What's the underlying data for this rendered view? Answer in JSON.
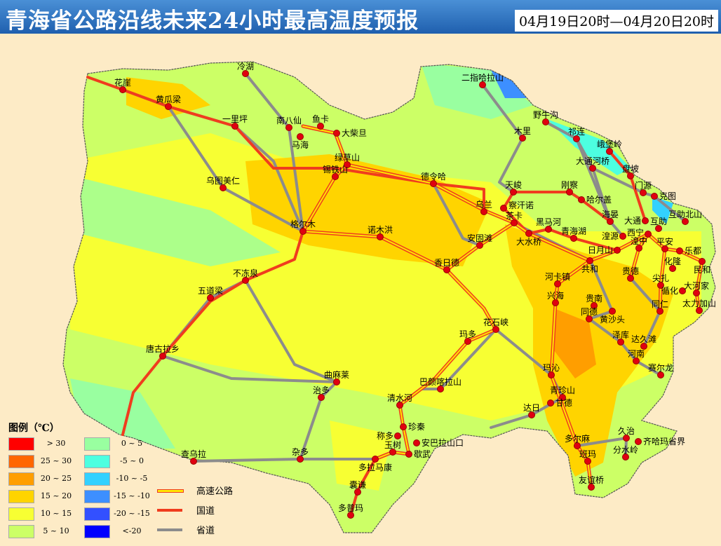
{
  "header": {
    "title": "青海省公路沿线未来24小时最高温度预报",
    "date_range": "04月19日20时—04月20日20时"
  },
  "legend": {
    "title": "图例（℃）",
    "temperature_classes": [
      {
        "label": "> 30",
        "color": "#ff0000"
      },
      {
        "label": "25 ~ 30",
        "color": "#ff6600"
      },
      {
        "label": "20 ~ 25",
        "color": "#ff9e00"
      },
      {
        "label": "15 ~ 20",
        "color": "#ffd400"
      },
      {
        "label": "10 ~ 15",
        "color": "#f7ff33"
      },
      {
        "label": "5 ~ 10",
        "color": "#ccff66"
      },
      {
        "label": "0 ~ 5",
        "color": "#99ffa0"
      },
      {
        "label": "-5 ~ 0",
        "color": "#4dffe0"
      },
      {
        "label": "-10 ~ -5",
        "color": "#33d1ff"
      },
      {
        "label": "-15 ~ -10",
        "color": "#3d8fff"
      },
      {
        "label": "-20 ~ -15",
        "color": "#3350ff"
      },
      {
        "label": "<-20",
        "color": "#0000ff"
      }
    ],
    "road_types": [
      {
        "label": "高速公路",
        "icon": "expressway-line",
        "color": "#ffe600"
      },
      {
        "label": "国道",
        "icon": "national-road-line",
        "color": "#f03c1e"
      },
      {
        "label": "省道",
        "icon": "provincial-road-line",
        "color": "#8c8c8c"
      }
    ]
  },
  "places": [
    "花崖",
    "黄瓜梁",
    "冷湖",
    "一里坪",
    "南八仙",
    "鱼卡",
    "马海",
    "大柴旦",
    "绿草山",
    "锡铁山",
    "乌图美仁",
    "德令哈",
    "格尔木",
    "诺木洪",
    "乌兰",
    "察汗诺",
    "茶卡",
    "天峻",
    "刚察",
    "哈尔盖",
    "木里",
    "野牛沟",
    "祁连",
    "峨堡岭",
    "大通河桥",
    "盘坡",
    "门源",
    "克图",
    "大通",
    "互助",
    "西宁",
    "互助北山",
    "海晏",
    "湟源",
    "日月山",
    "湟中",
    "平安",
    "乐都",
    "民和",
    "化隆",
    "尖扎",
    "循化",
    "大河家",
    "贵德",
    "共和",
    "大水桥",
    "黑马河",
    "青海湖",
    "河卡镇",
    "兴海",
    "贵南",
    "黄沙头",
    "同仁",
    "太力加山",
    "安固滩",
    "香日德",
    "不冻泉",
    "五道梁",
    "唐古拉乡",
    "花石峡",
    "玛多",
    "同德",
    "泽库",
    "达久滩",
    "河南",
    "赛尔龙",
    "玛沁",
    "青珍山",
    "甘德",
    "达日",
    "巴颜喀拉山",
    "曲麻莱",
    "治多",
    "清水河",
    "称多",
    "珍秦",
    "安巴拉山口",
    "玉树",
    "歇武",
    "杂多",
    "多拉马康",
    "囊谦",
    "多普玛",
    "查乌拉",
    "多尔麻",
    "久治",
    "齐哈玛省界",
    "分水岭",
    "班玛",
    "友谊桥",
    "二指哈拉山"
  ]
}
